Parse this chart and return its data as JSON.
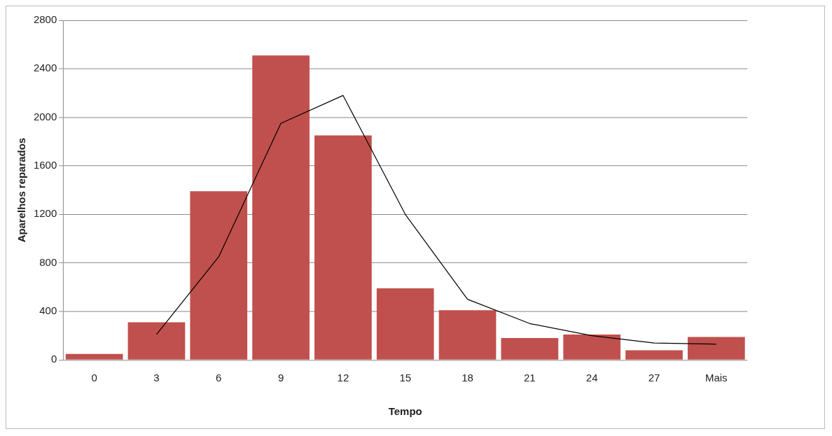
{
  "chart_data": {
    "type": "bar",
    "xlabel": "Tempo",
    "ylabel": "Aparelhos reparados",
    "categories": [
      "0",
      "3",
      "6",
      "9",
      "12",
      "15",
      "18",
      "21",
      "24",
      "27",
      "Mais"
    ],
    "series": [
      {
        "color": "#c0504d",
        "values": [
          50,
          310,
          1390,
          2510,
          1850,
          590,
          410,
          180,
          210,
          80,
          190
        ]
      },
      {
        "type": "line",
        "color": "#000000",
        "marker": "none",
        "values": [
          null,
          210,
          850,
          1950,
          2180,
          1200,
          500,
          300,
          200,
          140,
          130
        ]
      }
    ],
    "ylim": [
      0,
      2800
    ],
    "yticks": [
      0,
      400,
      800,
      1200,
      1600,
      2000,
      2400,
      2800
    ],
    "grid": "y"
  }
}
